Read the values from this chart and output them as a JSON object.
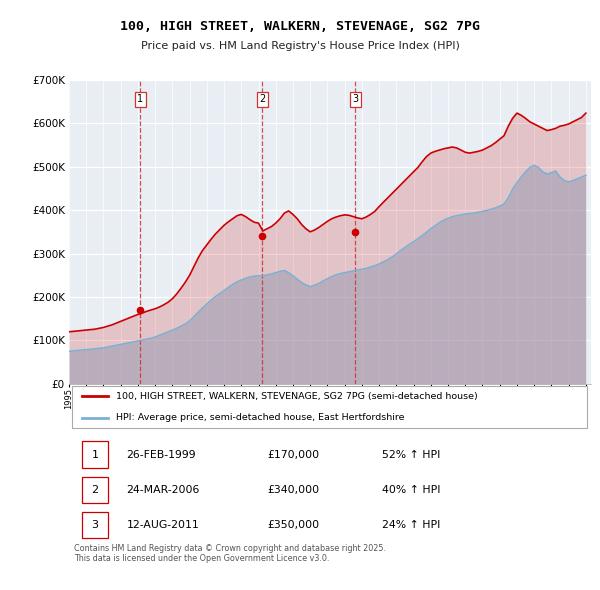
{
  "title": "100, HIGH STREET, WALKERN, STEVENAGE, SG2 7PG",
  "subtitle": "Price paid vs. HM Land Registry's House Price Index (HPI)",
  "legend_line1": "100, HIGH STREET, WALKERN, STEVENAGE, SG2 7PG (semi-detached house)",
  "legend_line2": "HPI: Average price, semi-detached house, East Hertfordshire",
  "sale_color": "#cc0000",
  "hpi_color": "#7ab0d4",
  "vline_color": "#cc3333",
  "background_color": "#e8eef4",
  "ylim": [
    0,
    700000
  ],
  "yticks": [
    0,
    100000,
    200000,
    300000,
    400000,
    500000,
    600000,
    700000
  ],
  "sales": [
    {
      "year": 1999.15,
      "price": 170000,
      "label": "1"
    },
    {
      "year": 2006.23,
      "price": 340000,
      "label": "2"
    },
    {
      "year": 2011.62,
      "price": 350000,
      "label": "3"
    }
  ],
  "table_rows": [
    [
      "1",
      "26-FEB-1999",
      "£170,000",
      "52% ↑ HPI"
    ],
    [
      "2",
      "24-MAR-2006",
      "£340,000",
      "40% ↑ HPI"
    ],
    [
      "3",
      "12-AUG-2011",
      "£350,000",
      "24% ↑ HPI"
    ]
  ],
  "footnote": "Contains HM Land Registry data © Crown copyright and database right 2025.\nThis data is licensed under the Open Government Licence v3.0.",
  "hpi_years": [
    1995.0,
    1995.25,
    1995.5,
    1995.75,
    1996.0,
    1996.25,
    1996.5,
    1996.75,
    1997.0,
    1997.25,
    1997.5,
    1997.75,
    1998.0,
    1998.25,
    1998.5,
    1998.75,
    1999.0,
    1999.25,
    1999.5,
    1999.75,
    2000.0,
    2000.25,
    2000.5,
    2000.75,
    2001.0,
    2001.25,
    2001.5,
    2001.75,
    2002.0,
    2002.25,
    2002.5,
    2002.75,
    2003.0,
    2003.25,
    2003.5,
    2003.75,
    2004.0,
    2004.25,
    2004.5,
    2004.75,
    2005.0,
    2005.25,
    2005.5,
    2005.75,
    2006.0,
    2006.25,
    2006.5,
    2006.75,
    2007.0,
    2007.25,
    2007.5,
    2007.75,
    2008.0,
    2008.25,
    2008.5,
    2008.75,
    2009.0,
    2009.25,
    2009.5,
    2009.75,
    2010.0,
    2010.25,
    2010.5,
    2010.75,
    2011.0,
    2011.25,
    2011.5,
    2011.75,
    2012.0,
    2012.25,
    2012.5,
    2012.75,
    2013.0,
    2013.25,
    2013.5,
    2013.75,
    2014.0,
    2014.25,
    2014.5,
    2014.75,
    2015.0,
    2015.25,
    2015.5,
    2015.75,
    2016.0,
    2016.25,
    2016.5,
    2016.75,
    2017.0,
    2017.25,
    2017.5,
    2017.75,
    2018.0,
    2018.25,
    2018.5,
    2018.75,
    2019.0,
    2019.25,
    2019.5,
    2019.75,
    2020.0,
    2020.25,
    2020.5,
    2020.75,
    2021.0,
    2021.25,
    2021.5,
    2021.75,
    2022.0,
    2022.25,
    2022.5,
    2022.75,
    2023.0,
    2023.25,
    2023.5,
    2023.75,
    2024.0,
    2024.25,
    2024.5,
    2024.75,
    2025.0
  ],
  "hpi_values": [
    75000,
    76000,
    77000,
    78000,
    79000,
    80000,
    81000,
    82000,
    83000,
    85000,
    87000,
    89000,
    91000,
    93000,
    95000,
    97000,
    99000,
    101000,
    103000,
    105000,
    108000,
    112000,
    116000,
    120000,
    124000,
    128000,
    133000,
    138000,
    145000,
    155000,
    165000,
    175000,
    184000,
    193000,
    201000,
    208000,
    215000,
    222000,
    229000,
    235000,
    239000,
    243000,
    246000,
    248000,
    249000,
    249000,
    251000,
    253000,
    256000,
    259000,
    261000,
    256000,
    249000,
    241000,
    233000,
    228000,
    224000,
    227000,
    231000,
    237000,
    242000,
    247000,
    251000,
    254000,
    256000,
    258000,
    260000,
    262000,
    264000,
    266000,
    269000,
    272000,
    276000,
    281000,
    286000,
    292000,
    299000,
    307000,
    314000,
    321000,
    327000,
    334000,
    341000,
    349000,
    357000,
    364000,
    371000,
    377000,
    381000,
    385000,
    387000,
    389000,
    391000,
    392000,
    393000,
    395000,
    397000,
    399000,
    402000,
    405000,
    409000,
    414000,
    428000,
    448000,
    463000,
    476000,
    488000,
    498000,
    503000,
    498000,
    488000,
    483000,
    486000,
    490000,
    476000,
    468000,
    465000,
    468000,
    472000,
    476000,
    480000
  ],
  "sale_years": [
    1995.0,
    1995.25,
    1995.5,
    1995.75,
    1996.0,
    1996.25,
    1996.5,
    1996.75,
    1997.0,
    1997.25,
    1997.5,
    1997.75,
    1998.0,
    1998.25,
    1998.5,
    1998.75,
    1999.0,
    1999.25,
    1999.5,
    1999.75,
    2000.0,
    2000.25,
    2000.5,
    2000.75,
    2001.0,
    2001.25,
    2001.5,
    2001.75,
    2002.0,
    2002.25,
    2002.5,
    2002.75,
    2003.0,
    2003.25,
    2003.5,
    2003.75,
    2004.0,
    2004.25,
    2004.5,
    2004.75,
    2005.0,
    2005.25,
    2005.5,
    2005.75,
    2006.0,
    2006.25,
    2006.5,
    2006.75,
    2007.0,
    2007.25,
    2007.5,
    2007.75,
    2008.0,
    2008.25,
    2008.5,
    2008.75,
    2009.0,
    2009.25,
    2009.5,
    2009.75,
    2010.0,
    2010.25,
    2010.5,
    2010.75,
    2011.0,
    2011.25,
    2011.5,
    2011.75,
    2012.0,
    2012.25,
    2012.5,
    2012.75,
    2013.0,
    2013.25,
    2013.5,
    2013.75,
    2014.0,
    2014.25,
    2014.5,
    2014.75,
    2015.0,
    2015.25,
    2015.5,
    2015.75,
    2016.0,
    2016.25,
    2016.5,
    2016.75,
    2017.0,
    2017.25,
    2017.5,
    2017.75,
    2018.0,
    2018.25,
    2018.5,
    2018.75,
    2019.0,
    2019.25,
    2019.5,
    2019.75,
    2020.0,
    2020.25,
    2020.5,
    2020.75,
    2021.0,
    2021.25,
    2021.5,
    2021.75,
    2022.0,
    2022.25,
    2022.5,
    2022.75,
    2023.0,
    2023.25,
    2023.5,
    2023.75,
    2024.0,
    2024.25,
    2024.5,
    2024.75,
    2025.0
  ],
  "sale_values": [
    120000,
    121000,
    122000,
    123000,
    124000,
    125000,
    126000,
    128000,
    130000,
    133000,
    136000,
    140000,
    144000,
    148000,
    152000,
    156000,
    160000,
    163000,
    167000,
    170000,
    173000,
    177000,
    182000,
    188000,
    196000,
    207000,
    220000,
    234000,
    250000,
    270000,
    290000,
    307000,
    320000,
    333000,
    345000,
    355000,
    365000,
    373000,
    380000,
    387000,
    390000,
    385000,
    378000,
    372000,
    370000,
    352000,
    357000,
    362000,
    370000,
    380000,
    393000,
    398000,
    390000,
    380000,
    367000,
    357000,
    350000,
    354000,
    360000,
    367000,
    374000,
    380000,
    384000,
    387000,
    389000,
    388000,
    385000,
    382000,
    380000,
    384000,
    390000,
    397000,
    408000,
    418000,
    428000,
    438000,
    448000,
    458000,
    468000,
    478000,
    488000,
    498000,
    511000,
    523000,
    531000,
    535000,
    538000,
    541000,
    543000,
    545000,
    543000,
    538000,
    533000,
    531000,
    533000,
    535000,
    538000,
    543000,
    548000,
    555000,
    563000,
    571000,
    593000,
    611000,
    623000,
    618000,
    611000,
    603000,
    598000,
    593000,
    588000,
    583000,
    585000,
    588000,
    593000,
    595000,
    598000,
    603000,
    608000,
    613000,
    623000
  ]
}
